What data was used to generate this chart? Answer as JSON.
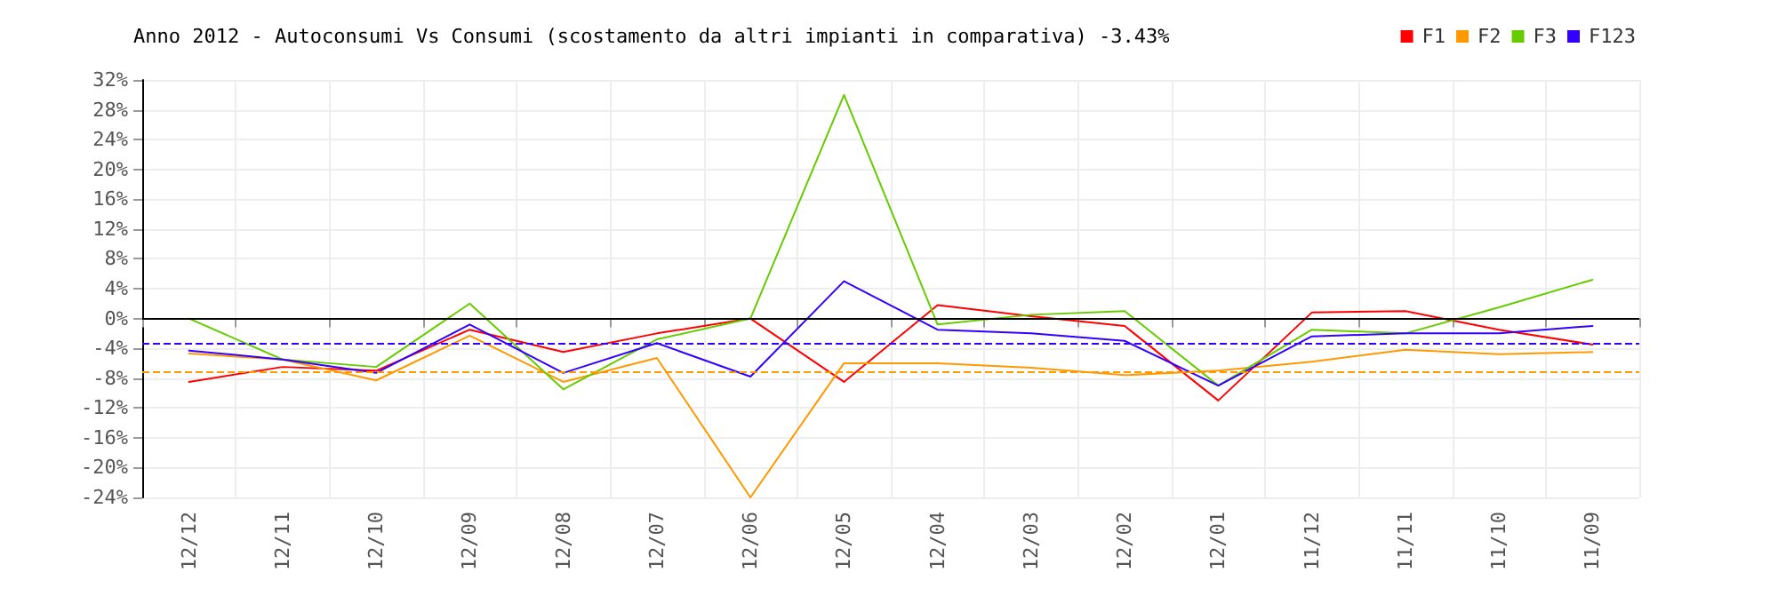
{
  "chart_data": {
    "type": "line",
    "title": "Anno 2012 - Autoconsumi Vs Consumi (scostamento da altri impianti in comparativa) -3.43%",
    "categories": [
      "12/12",
      "12/11",
      "12/10",
      "12/09",
      "12/08",
      "12/07",
      "12/06",
      "12/05",
      "12/04",
      "12/03",
      "12/02",
      "12/01",
      "11/12",
      "11/11",
      "11/10",
      "11/09"
    ],
    "series": [
      {
        "name": "F1",
        "color": "#ff0000",
        "values": [
          -8.5,
          -6.5,
          -7,
          -1.5,
          -4.5,
          -2,
          0,
          -8.5,
          1.8,
          0.3,
          -1,
          -11,
          0.8,
          1,
          -1.5,
          -3.5
        ]
      },
      {
        "name": "F2",
        "color": "#ff9900",
        "values": [
          -4.7,
          -5.5,
          -8.3,
          -2.3,
          -8.5,
          -5.3,
          -24,
          -6,
          -6,
          -6.6,
          -7.6,
          -7,
          -5.8,
          -4.2,
          -4.8,
          -4.5
        ]
      },
      {
        "name": "F3",
        "color": "#66cc00",
        "values": [
          0,
          -5.5,
          -6.5,
          2,
          -9.5,
          -2.8,
          0,
          30,
          -0.8,
          0.5,
          1,
          -9,
          -1.5,
          -2,
          1.5,
          5.2
        ]
      },
      {
        "name": "F123",
        "color": "#3300ff",
        "values": [
          -4.3,
          -5.5,
          -7.3,
          -0.8,
          -7.3,
          -3.3,
          -7.8,
          5,
          -1.5,
          -2,
          -3,
          -9,
          -2.4,
          -2,
          -2,
          -1
        ]
      }
    ],
    "ylim": [
      -24,
      32
    ],
    "yticks": [
      {
        "value": -24,
        "label": "-24%"
      },
      {
        "value": -20,
        "label": "-20%"
      },
      {
        "value": -16,
        "label": "-16%"
      },
      {
        "value": -12,
        "label": "-12%"
      },
      {
        "value": -8,
        "label": "-8%"
      },
      {
        "value": -4,
        "label": "-4%"
      },
      {
        "value": 0,
        "label": "0%"
      },
      {
        "value": 4,
        "label": "4%"
      },
      {
        "value": 8,
        "label": "8%"
      },
      {
        "value": 12,
        "label": "12%"
      },
      {
        "value": 16,
        "label": "16%"
      },
      {
        "value": 20,
        "label": "20%"
      },
      {
        "value": 24,
        "label": "24%"
      },
      {
        "value": 28,
        "label": "28%"
      },
      {
        "value": 32,
        "label": "32%"
      }
    ],
    "ref_lines": [
      {
        "axis": "y",
        "value": 0,
        "color": "#000000",
        "line_style": "solid"
      },
      {
        "axis": "y",
        "value": -3.4,
        "color": "#3300ff",
        "line_style": "dashed"
      },
      {
        "axis": "y",
        "value": -7.1,
        "color": "#ff9900",
        "line_style": "dashed"
      }
    ],
    "grid": true,
    "legend": "top right",
    "marker": "none",
    "line_style": "solid"
  }
}
